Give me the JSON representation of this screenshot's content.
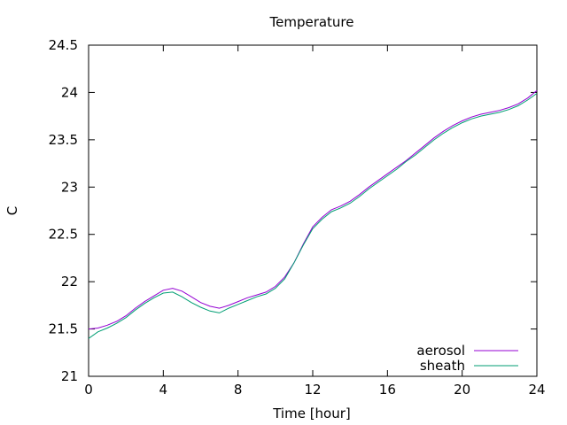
{
  "chart_data": {
    "type": "line",
    "title": "Temperature",
    "xlabel": "Time [hour]",
    "ylabel": "C",
    "xlim": [
      0,
      24
    ],
    "ylim": [
      21,
      24.5
    ],
    "x_ticks": [
      "0",
      "4",
      "8",
      "12",
      "16",
      "20",
      "24"
    ],
    "y_ticks": [
      "21",
      "21.5",
      "22",
      "22.5",
      "23",
      "23.5",
      "24",
      "24.5"
    ],
    "x_tick_values": [
      0,
      4,
      8,
      12,
      16,
      20,
      24
    ],
    "y_tick_values": [
      21,
      21.5,
      22,
      22.5,
      23,
      23.5,
      24,
      24.5
    ],
    "grid": false,
    "legend_position": "bottom-right",
    "series": [
      {
        "name": "aerosol",
        "color": "#9400d3",
        "x": [
          0,
          0.5,
          1,
          1.5,
          2,
          2.5,
          3,
          3.5,
          4,
          4.5,
          5,
          5.5,
          6,
          6.5,
          7,
          7.5,
          8,
          8.5,
          9,
          9.5,
          10,
          10.5,
          11,
          11.5,
          12,
          12.5,
          13,
          13.5,
          14,
          14.5,
          15,
          15.5,
          16,
          16.5,
          17,
          17.5,
          18,
          18.5,
          19,
          19.5,
          20,
          20.5,
          21,
          21.5,
          22,
          22.5,
          23,
          23.5,
          24
        ],
        "y": [
          21.5,
          21.51,
          21.54,
          21.58,
          21.64,
          21.72,
          21.79,
          21.85,
          21.91,
          21.93,
          21.9,
          21.84,
          21.78,
          21.74,
          21.72,
          21.75,
          21.79,
          21.83,
          21.86,
          21.89,
          21.95,
          22.05,
          22.2,
          22.4,
          22.58,
          22.68,
          22.76,
          22.8,
          22.85,
          22.92,
          23.0,
          23.07,
          23.14,
          23.21,
          23.28,
          23.36,
          23.44,
          23.52,
          23.59,
          23.65,
          23.7,
          23.74,
          23.77,
          23.79,
          23.81,
          23.84,
          23.88,
          23.94,
          24.02
        ]
      },
      {
        "name": "sheath",
        "color": "#009e73",
        "x": [
          0,
          0.5,
          1,
          1.5,
          2,
          2.5,
          3,
          3.5,
          4,
          4.5,
          5,
          5.5,
          6,
          6.5,
          7,
          7.5,
          8,
          8.5,
          9,
          9.5,
          10,
          10.5,
          11,
          11.5,
          12,
          12.5,
          13,
          13.5,
          14,
          14.5,
          15,
          15.5,
          16,
          16.5,
          17,
          17.5,
          18,
          18.5,
          19,
          19.5,
          20,
          20.5,
          21,
          21.5,
          22,
          22.5,
          23,
          23.5,
          24
        ],
        "y": [
          21.4,
          21.47,
          21.51,
          21.56,
          21.62,
          21.7,
          21.77,
          21.83,
          21.88,
          21.89,
          21.84,
          21.78,
          21.73,
          21.69,
          21.67,
          21.72,
          21.76,
          21.8,
          21.84,
          21.87,
          21.93,
          22.03,
          22.2,
          22.39,
          22.56,
          22.66,
          22.74,
          22.78,
          22.83,
          22.9,
          22.98,
          23.05,
          23.12,
          23.19,
          23.27,
          23.34,
          23.42,
          23.5,
          23.57,
          23.63,
          23.68,
          23.72,
          23.75,
          23.77,
          23.79,
          23.82,
          23.86,
          23.92,
          23.99
        ]
      }
    ]
  }
}
